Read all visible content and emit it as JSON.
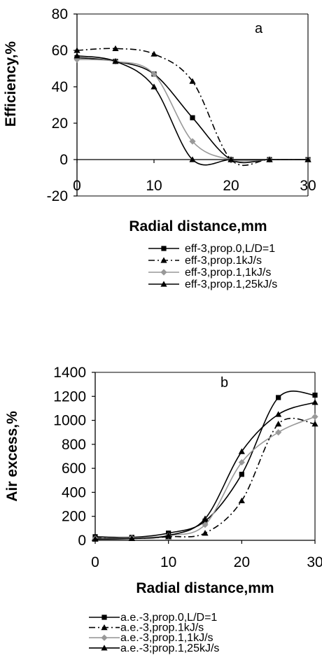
{
  "chart_data": [
    {
      "type": "line",
      "panel_label": "a",
      "xlabel": "Radial distance,mm",
      "ylabel": "Efficiency,%",
      "xlim": [
        0,
        30
      ],
      "ylim": [
        -20,
        80
      ],
      "x_ticks": [
        "0",
        "10",
        "20",
        "30"
      ],
      "y_ticks": [
        "-20",
        "0",
        "20",
        "40",
        "60",
        "80"
      ],
      "grid": false,
      "legend_position": "below",
      "series": [
        {
          "name": "eff-3,prop.0,L/D=1",
          "style": "solid",
          "marker": "square",
          "color": "#000000",
          "x": [
            0,
            5,
            10,
            15,
            20,
            25,
            30
          ],
          "y": [
            56,
            54,
            47,
            23,
            0,
            0,
            0
          ]
        },
        {
          "name": "eff-3,prop.1kJ/s",
          "style": "dashdot",
          "marker": "triangle",
          "color": "#000000",
          "x": [
            0,
            5,
            10,
            15,
            20,
            25,
            30
          ],
          "y": [
            60,
            61,
            58,
            43,
            0,
            0,
            0
          ]
        },
        {
          "name": "eff-3,prop.1,1kJ/s",
          "style": "solid",
          "marker": "diamond",
          "color": "#999999",
          "x": [
            0,
            5,
            10,
            15,
            20,
            25,
            30
          ],
          "y": [
            55,
            54,
            47,
            10,
            0,
            0,
            0
          ]
        },
        {
          "name": "eff-3,prop.1,25kJ/s",
          "style": "solid",
          "marker": "triangle",
          "color": "#000000",
          "x": [
            0,
            5,
            10,
            15,
            20,
            25,
            30
          ],
          "y": [
            57,
            54,
            40,
            0,
            0,
            0,
            0
          ]
        }
      ]
    },
    {
      "type": "line",
      "panel_label": "b",
      "xlabel": "Radial distance,mm",
      "ylabel": "Air excess,%",
      "xlim": [
        0,
        30
      ],
      "ylim": [
        0,
        1400
      ],
      "x_ticks": [
        "0",
        "10",
        "20",
        "30"
      ],
      "y_ticks": [
        "0",
        "200",
        "400",
        "600",
        "800",
        "1000",
        "1200",
        "1400"
      ],
      "grid": false,
      "legend_position": "below",
      "series": [
        {
          "name": "a.e.-3,prop.0,L/D=1",
          "style": "solid",
          "marker": "square",
          "color": "#000000",
          "x": [
            0,
            5,
            10,
            15,
            20,
            25,
            30
          ],
          "y": [
            30,
            25,
            60,
            160,
            550,
            1190,
            1210
          ]
        },
        {
          "name": "a.e.-3,prop.1kJ/s",
          "style": "dashdot",
          "marker": "triangle",
          "color": "#000000",
          "x": [
            0,
            5,
            10,
            15,
            20,
            25,
            30
          ],
          "y": [
            20,
            15,
            30,
            60,
            330,
            970,
            970
          ]
        },
        {
          "name": "a.e.-3,prop.1,1kJ/s",
          "style": "solid",
          "marker": "diamond",
          "color": "#999999",
          "x": [
            0,
            5,
            10,
            15,
            20,
            25,
            30
          ],
          "y": [
            15,
            20,
            40,
            130,
            650,
            900,
            1030
          ]
        },
        {
          "name": "a.e.-3;prop.1,25kJ/s",
          "style": "solid",
          "marker": "triangle",
          "color": "#000000",
          "x": [
            0,
            5,
            10,
            15,
            20,
            25,
            30
          ],
          "y": [
            10,
            15,
            40,
            180,
            740,
            1050,
            1150
          ]
        }
      ]
    }
  ]
}
